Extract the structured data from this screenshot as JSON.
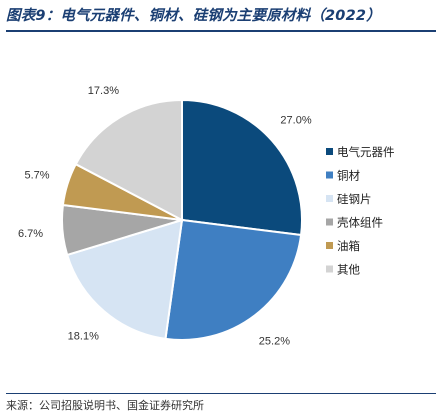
{
  "title": "图表9：电气元器件、铜材、硅钢为主要原材料（2022）",
  "source": "来源：公司招股说明书、国金证券研究所",
  "chart_data": {
    "type": "pie",
    "title": "图表9：电气元器件、铜材、硅钢为主要原材料（2022）",
    "slices": [
      {
        "label": "电气元器件",
        "value": 27.0,
        "display": "27.0%",
        "color": "#0b4a7c"
      },
      {
        "label": "铜材",
        "value": 25.2,
        "display": "25.2%",
        "color": "#3f7fc2"
      },
      {
        "label": "硅钢片",
        "value": 18.1,
        "display": "18.1%",
        "color": "#d6e4f3"
      },
      {
        "label": "壳体组件",
        "value": 6.7,
        "display": "6.7%",
        "color": "#a6a6a6"
      },
      {
        "label": "油箱",
        "value": 5.7,
        "display": "5.7%",
        "color": "#c09a52"
      },
      {
        "label": "其他",
        "value": 17.3,
        "display": "17.3%",
        "color": "#d3d3d3"
      }
    ],
    "start_angle": "12 o'clock",
    "direction": "clockwise",
    "legend_placement": "right"
  }
}
